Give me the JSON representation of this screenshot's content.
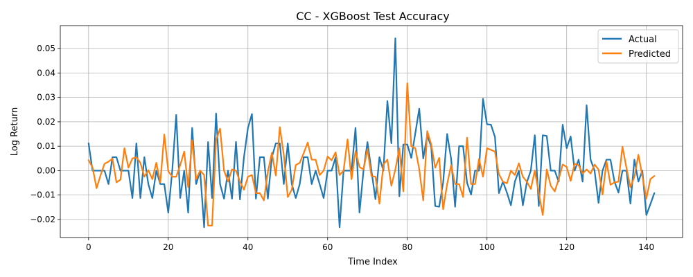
{
  "chart_data": {
    "type": "line",
    "title": "CC - XGBoost Test Accuracy",
    "xlabel": "Time Index",
    "ylabel": "Log Return",
    "xlim": [
      -7.1,
      149.1
    ],
    "ylim": [
      -0.0274,
      0.0594
    ],
    "xticks": [
      0,
      20,
      40,
      60,
      80,
      100,
      120,
      140
    ],
    "xtick_labels": [
      "0",
      "20",
      "40",
      "60",
      "80",
      "100",
      "120",
      "140"
    ],
    "yticks": [
      -0.02,
      -0.01,
      0.0,
      0.01,
      0.02,
      0.03,
      0.04,
      0.05
    ],
    "ytick_labels": [
      "−0.02",
      "−0.01",
      "0.00",
      "0.01",
      "0.02",
      "0.03",
      "0.04",
      "0.05"
    ],
    "grid": true,
    "legend_position": "upper right",
    "series": [
      {
        "name": "Actual",
        "color": "#1f77b4",
        "values": [
          0.0112,
          0.0,
          0.0,
          0.0,
          0.0,
          -0.0055,
          0.0055,
          0.0055,
          0.0,
          0.0,
          0.0,
          -0.0112,
          0.0112,
          -0.0112,
          0.0055,
          -0.0055,
          -0.0112,
          0.0,
          -0.0055,
          -0.0055,
          -0.0172,
          0.0,
          0.0228,
          -0.0112,
          0.0,
          -0.0172,
          0.0175,
          -0.0055,
          0.0,
          -0.0232,
          0.0117,
          -0.0112,
          0.0234,
          -0.0055,
          -0.0115,
          0.0,
          -0.0115,
          0.0118,
          -0.0118,
          0.0055,
          0.0175,
          0.0232,
          -0.0115,
          0.0055,
          0.0055,
          -0.0115,
          0.0055,
          0.0112,
          0.0112,
          -0.0055,
          0.0112,
          -0.0055,
          -0.0112,
          -0.0055,
          0.0055,
          0.0055,
          -0.0055,
          0.0,
          -0.0055,
          -0.0112,
          0.0,
          0.0,
          0.0055,
          -0.0232,
          0.0,
          0.0,
          0.0,
          0.0175,
          -0.0172,
          0.0,
          0.0117,
          0.0,
          -0.0117,
          0.0055,
          0.0,
          0.0285,
          0.0112,
          0.0542,
          -0.0105,
          0.0107,
          0.0107,
          0.0052,
          0.0152,
          0.0254,
          0.005,
          0.0145,
          0.0098,
          -0.0145,
          -0.0148,
          -0.0048,
          0.015,
          0.0048,
          -0.0148,
          0.01,
          0.01,
          -0.005,
          -0.0098,
          0.0,
          0.0,
          0.0294,
          0.019,
          0.0188,
          0.0138,
          -0.0092,
          -0.0045,
          -0.009,
          -0.0142,
          -0.0045,
          0.0,
          -0.0142,
          -0.0048,
          0.0,
          0.0145,
          -0.0145,
          0.0145,
          0.0142,
          0.0,
          0.0,
          -0.0045,
          0.0188,
          0.0092,
          0.014,
          0.0,
          0.0045,
          -0.0045,
          0.0268,
          0.0045,
          0.0,
          -0.0132,
          0.0,
          0.0045,
          0.0045,
          -0.0045,
          -0.009,
          0.0,
          0.0,
          -0.0135,
          0.0045,
          -0.0045,
          0.0,
          -0.0182,
          -0.0138,
          -0.0092
        ]
      },
      {
        "name": "Predicted",
        "color": "#ff7f0e",
        "values": [
          0.0043,
          0.0013,
          -0.0072,
          -0.0019,
          0.0028,
          0.0037,
          0.0049,
          -0.0048,
          -0.0037,
          0.0092,
          0.0012,
          0.005,
          0.0055,
          0.0032,
          -0.0025,
          0.0002,
          -0.0035,
          0.0032,
          -0.0048,
          0.0148,
          -0.0002,
          -0.0025,
          -0.0025,
          0.0023,
          0.0078,
          -0.0068,
          0.0125,
          -0.0035,
          0.0,
          -0.0018,
          -0.0225,
          -0.0225,
          0.0125,
          0.0172,
          0.0,
          -0.0045,
          0.0005,
          0.0,
          -0.0045,
          -0.0078,
          -0.0025,
          -0.0018,
          -0.0092,
          -0.0092,
          -0.0122,
          -0.0005,
          0.0073,
          -0.002,
          0.0178,
          0.0065,
          -0.0108,
          -0.0078,
          0.0023,
          0.0032,
          0.0072,
          0.0115,
          0.0045,
          0.0045,
          -0.0018,
          0.0,
          0.0058,
          0.0042,
          0.0075,
          -0.0018,
          0.0,
          0.0128,
          -0.0035,
          0.008,
          0.0015,
          0.0005,
          0.0088,
          -0.0022,
          -0.0025,
          -0.0135,
          0.0025,
          0.0045,
          -0.0062,
          0.0005,
          0.0092,
          -0.0085,
          0.0358,
          0.01,
          0.0092,
          0.0005,
          -0.0122,
          0.0162,
          0.0108,
          0.0012,
          0.0052,
          -0.0158,
          -0.0055,
          0.0022,
          -0.0055,
          -0.0055,
          -0.0108,
          0.0135,
          -0.0055,
          -0.0055,
          0.0048,
          -0.0025,
          0.0092,
          0.0085,
          0.0078,
          -0.0015,
          -0.0045,
          -0.0052,
          0.0,
          -0.0018,
          0.003,
          -0.0025,
          -0.0045,
          -0.0075,
          0.0,
          -0.0092,
          -0.0182,
          0.0005,
          -0.0062,
          -0.0085,
          -0.0035,
          0.0025,
          0.0015,
          -0.0042,
          0.0028,
          0.0022,
          -0.0012,
          0.0005,
          -0.0012,
          0.0025,
          0.0005,
          -0.0098,
          0.0038,
          -0.0058,
          -0.0048,
          -0.0045,
          0.0098,
          0.0012,
          -0.0068,
          -0.0025,
          0.0065,
          -0.0022,
          -0.0115,
          -0.0035,
          -0.0022
        ]
      }
    ]
  }
}
